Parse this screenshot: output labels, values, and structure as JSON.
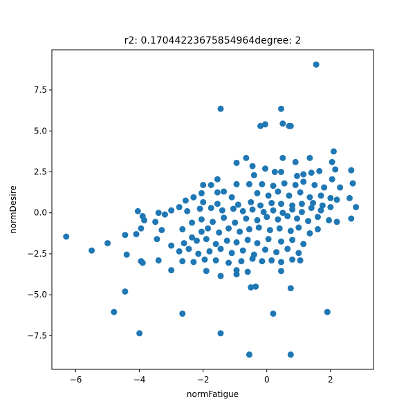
{
  "chart_data": {
    "type": "scatter",
    "title": "r2: 0.17044223675854964degree: 2",
    "xlabel": "normFatigue",
    "ylabel": "normDesire",
    "xlim": [
      -6.75,
      3.35
    ],
    "ylim": [
      -9.55,
      9.95
    ],
    "xticks": [
      -6,
      -4,
      -2,
      0,
      2
    ],
    "xtick_labels": [
      "−6",
      "−4",
      "−2",
      "0",
      "2"
    ],
    "yticks": [
      -7.5,
      -5.0,
      -2.5,
      0.0,
      2.5,
      5.0,
      7.5
    ],
    "ytick_labels": [
      "−7.5",
      "−5.0",
      "−2.5",
      "0.0",
      "2.5",
      "5.0",
      "7.5"
    ],
    "grid": false,
    "marker_color": "#1f77b4",
    "points": [
      [
        1.55,
        9.05
      ],
      [
        -1.45,
        6.35
      ],
      [
        0.45,
        6.35
      ],
      [
        -0.2,
        5.3
      ],
      [
        -0.05,
        5.4
      ],
      [
        0.5,
        5.45
      ],
      [
        0.7,
        5.3
      ],
      [
        0.75,
        5.3
      ],
      [
        2.1,
        3.75
      ],
      [
        1.35,
        3.35
      ],
      [
        0.5,
        3.35
      ],
      [
        -0.65,
        3.35
      ],
      [
        2.05,
        3.1
      ],
      [
        0.9,
        3.1
      ],
      [
        -0.95,
        3.05
      ],
      [
        -0.45,
        2.85
      ],
      [
        -0.05,
        2.7
      ],
      [
        0.25,
        2.5
      ],
      [
        1.15,
        2.35
      ],
      [
        2.65,
        2.6
      ],
      [
        2.15,
        2.65
      ],
      [
        1.65,
        2.55
      ],
      [
        1.4,
        2.45
      ],
      [
        0.95,
        2.25
      ],
      [
        0.45,
        2.5
      ],
      [
        -0.4,
        2.3
      ],
      [
        -1.55,
        2.05
      ],
      [
        -1.75,
        1.7
      ],
      [
        -2.0,
        1.7
      ],
      [
        -0.95,
        1.75
      ],
      [
        -0.55,
        1.75
      ],
      [
        -0.15,
        1.75
      ],
      [
        0.2,
        1.65
      ],
      [
        0.55,
        1.8
      ],
      [
        0.9,
        1.7
      ],
      [
        1.15,
        1.9
      ],
      [
        1.5,
        1.7
      ],
      [
        1.8,
        1.55
      ],
      [
        2.05,
        2.05
      ],
      [
        2.3,
        1.55
      ],
      [
        2.7,
        1.8
      ],
      [
        -1.35,
        1.3
      ],
      [
        -1.55,
        1.25
      ],
      [
        -2.05,
        1.2
      ],
      [
        -1.1,
        0.95
      ],
      [
        -0.3,
        1.2
      ],
      [
        0.05,
        1.05
      ],
      [
        0.35,
        1.3
      ],
      [
        0.7,
        1.05
      ],
      [
        1.05,
        1.25
      ],
      [
        1.35,
        0.95
      ],
      [
        1.7,
        1.05
      ],
      [
        2.0,
        0.9
      ],
      [
        -2.3,
        0.95
      ],
      [
        -2.55,
        0.75
      ],
      [
        -2.0,
        0.65
      ],
      [
        -1.55,
        0.55
      ],
      [
        -0.9,
        0.5
      ],
      [
        -0.5,
        0.65
      ],
      [
        -0.2,
        0.45
      ],
      [
        0.15,
        0.6
      ],
      [
        0.45,
        0.55
      ],
      [
        0.8,
        0.45
      ],
      [
        1.1,
        0.55
      ],
      [
        1.45,
        0.6
      ],
      [
        1.75,
        0.45
      ],
      [
        2.2,
        0.8
      ],
      [
        2.6,
        0.9
      ],
      [
        2.8,
        0.35
      ],
      [
        -2.75,
        0.35
      ],
      [
        -3.0,
        0.15
      ],
      [
        -3.4,
        0.0
      ],
      [
        -4.05,
        0.1
      ],
      [
        -3.9,
        -0.2
      ],
      [
        -3.2,
        -0.1
      ],
      [
        -2.5,
        0.1
      ],
      [
        -2.1,
        0.25
      ],
      [
        -1.75,
        0.3
      ],
      [
        -1.4,
        0.15
      ],
      [
        -1.05,
        0.25
      ],
      [
        -0.75,
        0.1
      ],
      [
        -0.45,
        0.2
      ],
      [
        -0.1,
        0.05
      ],
      [
        0.2,
        0.15
      ],
      [
        0.5,
        0.0
      ],
      [
        0.8,
        0.2
      ],
      [
        1.1,
        0.05
      ],
      [
        1.4,
        0.3
      ],
      [
        1.7,
        0.15
      ],
      [
        2.0,
        0.35
      ],
      [
        -4.1,
        -1.3
      ],
      [
        -3.85,
        -0.45
      ],
      [
        -3.5,
        -0.55
      ],
      [
        -3.3,
        -1.05
      ],
      [
        -2.65,
        -1.0
      ],
      [
        -2.35,
        -0.6
      ],
      [
        -2.05,
        -0.4
      ],
      [
        -1.7,
        -0.55
      ],
      [
        -1.35,
        -0.3
      ],
      [
        -1.0,
        -0.6
      ],
      [
        -0.65,
        -0.35
      ],
      [
        -0.3,
        -0.45
      ],
      [
        0.0,
        -0.25
      ],
      [
        0.35,
        -0.4
      ],
      [
        0.65,
        -0.2
      ],
      [
        0.95,
        -0.35
      ],
      [
        1.3,
        -0.5
      ],
      [
        1.6,
        -0.25
      ],
      [
        1.95,
        -0.45
      ],
      [
        2.2,
        -0.55
      ],
      [
        2.65,
        -0.35
      ],
      [
        -3.95,
        -0.95
      ],
      [
        -3.45,
        -1.6
      ],
      [
        -2.35,
        -1.5
      ],
      [
        -2.05,
        -1.15
      ],
      [
        -1.85,
        -0.95
      ],
      [
        -1.5,
        -1.2
      ],
      [
        -1.2,
        -0.95
      ],
      [
        -0.85,
        -1.15
      ],
      [
        -0.55,
        -1.0
      ],
      [
        -0.25,
        -0.9
      ],
      [
        0.1,
        -1.05
      ],
      [
        0.4,
        -0.95
      ],
      [
        0.75,
        -1.1
      ],
      [
        1.0,
        -0.9
      ],
      [
        1.35,
        -1.25
      ],
      [
        1.6,
        -1.0
      ],
      [
        -6.3,
        -1.45
      ],
      [
        -5.0,
        -1.85
      ],
      [
        -4.45,
        -1.35
      ],
      [
        -3.0,
        -2.0
      ],
      [
        -2.6,
        -1.85
      ],
      [
        -2.2,
        -1.7
      ],
      [
        -1.9,
        -1.6
      ],
      [
        -1.6,
        -1.9
      ],
      [
        -1.25,
        -1.7
      ],
      [
        -0.95,
        -1.8
      ],
      [
        -0.6,
        -1.65
      ],
      [
        -0.3,
        -1.85
      ],
      [
        0.05,
        -1.6
      ],
      [
        0.45,
        -1.75
      ],
      [
        0.8,
        -1.65
      ],
      [
        1.15,
        -1.9
      ],
      [
        -5.5,
        -2.3
      ],
      [
        -4.4,
        -2.55
      ],
      [
        -2.75,
        -2.35
      ],
      [
        -2.45,
        -2.2
      ],
      [
        -2.15,
        -2.5
      ],
      [
        -1.8,
        -2.35
      ],
      [
        -1.45,
        -2.2
      ],
      [
        -1.1,
        -2.45
      ],
      [
        -0.75,
        -2.3
      ],
      [
        -0.4,
        -2.55
      ],
      [
        -0.05,
        -2.25
      ],
      [
        0.3,
        -2.4
      ],
      [
        0.65,
        -2.2
      ],
      [
        1.0,
        -2.45
      ],
      [
        -3.95,
        -2.95
      ],
      [
        -3.9,
        -3.05
      ],
      [
        -3.4,
        -2.9
      ],
      [
        -2.65,
        -2.95
      ],
      [
        -2.3,
        -3.0
      ],
      [
        -1.95,
        -2.85
      ],
      [
        -1.6,
        -2.9
      ],
      [
        -1.2,
        -3.05
      ],
      [
        -0.8,
        -2.95
      ],
      [
        -0.45,
        -2.8
      ],
      [
        -0.15,
        -2.95
      ],
      [
        0.15,
        -2.9
      ],
      [
        0.45,
        -3.0
      ],
      [
        0.8,
        -2.85
      ],
      [
        1.05,
        -2.9
      ],
      [
        -3.0,
        -3.5
      ],
      [
        -1.9,
        -3.55
      ],
      [
        -0.95,
        -3.5
      ],
      [
        -0.6,
        -3.6
      ],
      [
        0.45,
        -3.55
      ],
      [
        -1.45,
        -3.85
      ],
      [
        -0.95,
        -3.75
      ],
      [
        -0.5,
        -4.55
      ],
      [
        -0.35,
        -4.5
      ],
      [
        0.75,
        -4.6
      ],
      [
        -4.45,
        -4.8
      ],
      [
        -4.8,
        -6.05
      ],
      [
        -2.65,
        -6.15
      ],
      [
        0.2,
        -6.15
      ],
      [
        1.9,
        -6.05
      ],
      [
        -4.0,
        -7.35
      ],
      [
        -1.45,
        -7.35
      ],
      [
        -0.55,
        -8.65
      ],
      [
        0.75,
        -8.65
      ]
    ]
  }
}
